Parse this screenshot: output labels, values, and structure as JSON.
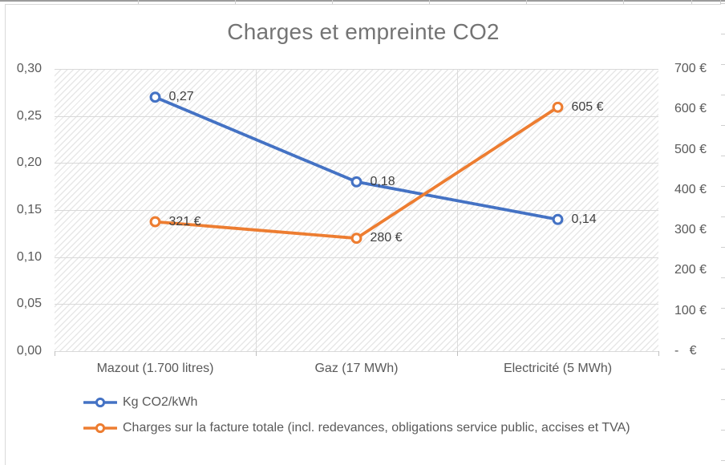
{
  "chart_data": {
    "type": "line",
    "title": "Charges et empreinte CO2",
    "categories": [
      "Mazout (1.700 litres)",
      "Gaz (17 MWh)",
      "Electricité (5 MWh)"
    ],
    "series": [
      {
        "name": "Kg CO2/kWh",
        "axis": "left",
        "color": "#4472C4",
        "values": [
          0.27,
          0.18,
          0.14
        ],
        "point_labels": [
          "0,27",
          "0,18",
          "0,14"
        ]
      },
      {
        "name": "Charges sur la facture totale (incl. redevances, obligations service public, accises et TVA)",
        "axis": "right",
        "color": "#ED7D31",
        "values": [
          321,
          280,
          605
        ],
        "point_labels": [
          "321 €",
          "280 €",
          "605 €"
        ]
      }
    ],
    "left_axis": {
      "min": 0,
      "max": 0.3,
      "step": 0.05,
      "tick_labels": [
        "0,30",
        "0,25",
        "0,20",
        "0,15",
        "0,10",
        "0,05",
        "0,00"
      ]
    },
    "right_axis": {
      "min": 0,
      "max": 700,
      "step": 100,
      "tick_labels": [
        "700 €",
        "600 €",
        "500 €",
        "400 €",
        "300 €",
        "200 €",
        "100 €",
        "-   €"
      ]
    },
    "legend_position": "bottom-left",
    "grid": true,
    "plot_background": "light-diagonal-hatch",
    "marker_style": "open-circle"
  },
  "colors": {
    "series_co2": "#4472C4",
    "series_charges": "#ED7D31",
    "gridline": "#D9D9D9",
    "title_text": "#747474",
    "axis_text": "#595959"
  }
}
